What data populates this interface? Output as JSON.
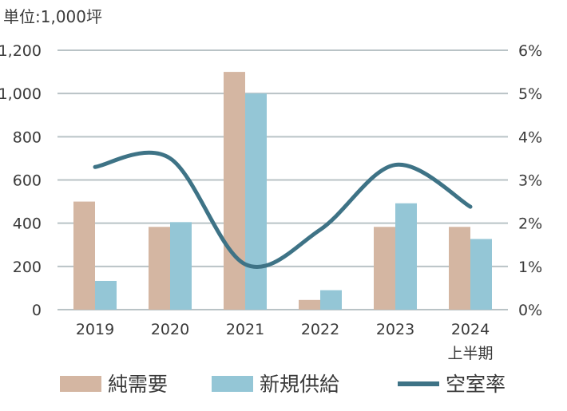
{
  "chart_data": {
    "type": "bar",
    "unit_label": "単位:1,000坪",
    "categories": [
      "2019",
      "2020",
      "2021",
      "2022",
      "2023",
      "2024"
    ],
    "category_sublabels": [
      "",
      "",
      "",
      "",
      "",
      "上半期"
    ],
    "series": [
      {
        "name": "純需要",
        "type": "bar",
        "axis": "left",
        "color": "#d4b6a2",
        "values": [
          500,
          383,
          1100,
          45,
          383,
          383
        ]
      },
      {
        "name": "新規供給",
        "type": "bar",
        "axis": "left",
        "color": "#94c6d6",
        "values": [
          133,
          405,
          1000,
          90,
          492,
          327
        ]
      },
      {
        "name": "空室率",
        "type": "line",
        "axis": "right",
        "color": "#3e7386",
        "values": [
          3.3,
          3.5,
          1.05,
          1.85,
          3.35,
          2.38
        ]
      }
    ],
    "y_left": {
      "min": 0,
      "max": 1200,
      "ticks": [
        0,
        200,
        400,
        600,
        800,
        1000,
        1200
      ],
      "tick_labels": [
        "0",
        "200",
        "400",
        "600",
        "800",
        "1,000",
        "1,200"
      ]
    },
    "y_right": {
      "min": 0,
      "max": 6,
      "ticks": [
        0,
        1,
        2,
        3,
        4,
        5,
        6
      ],
      "tick_labels": [
        "0%",
        "1%",
        "2%",
        "3%",
        "4%",
        "5%",
        "6%"
      ]
    },
    "grid": true,
    "legend_position": "bottom"
  }
}
